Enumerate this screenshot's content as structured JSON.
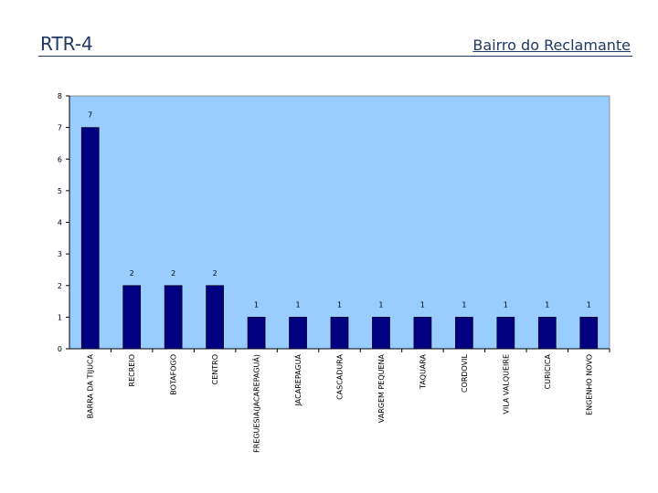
{
  "header": {
    "title": "RTR-4",
    "subtitle": "Bairro do Reclamante"
  },
  "colors": {
    "plot_background": "#99ccff",
    "bar_fill": "#000080",
    "header_text": "#1f3864"
  },
  "chart_data": {
    "type": "bar",
    "title": "",
    "xlabel": "",
    "ylabel": "",
    "ylim": [
      0,
      8
    ],
    "yticks": [
      0,
      1,
      2,
      3,
      4,
      5,
      6,
      7,
      8
    ],
    "grid": false,
    "legend": "none",
    "categories": [
      "BARRA DA TIJUCA",
      "RECREIO",
      "BOTAFOGO",
      "CENTRO",
      "FREGUESIA(JACAREPAGUÁ)",
      "JACAREPAGUÁ",
      "CASCADURA",
      "VARGEM PEQUENA",
      "TAQUARA",
      "CORDOVIL",
      "VILA VALQUEIRE",
      "CURICICA",
      "ENGENHO NOVO"
    ],
    "values": [
      7,
      2,
      2,
      2,
      1,
      1,
      1,
      1,
      1,
      1,
      1,
      1,
      1
    ]
  }
}
